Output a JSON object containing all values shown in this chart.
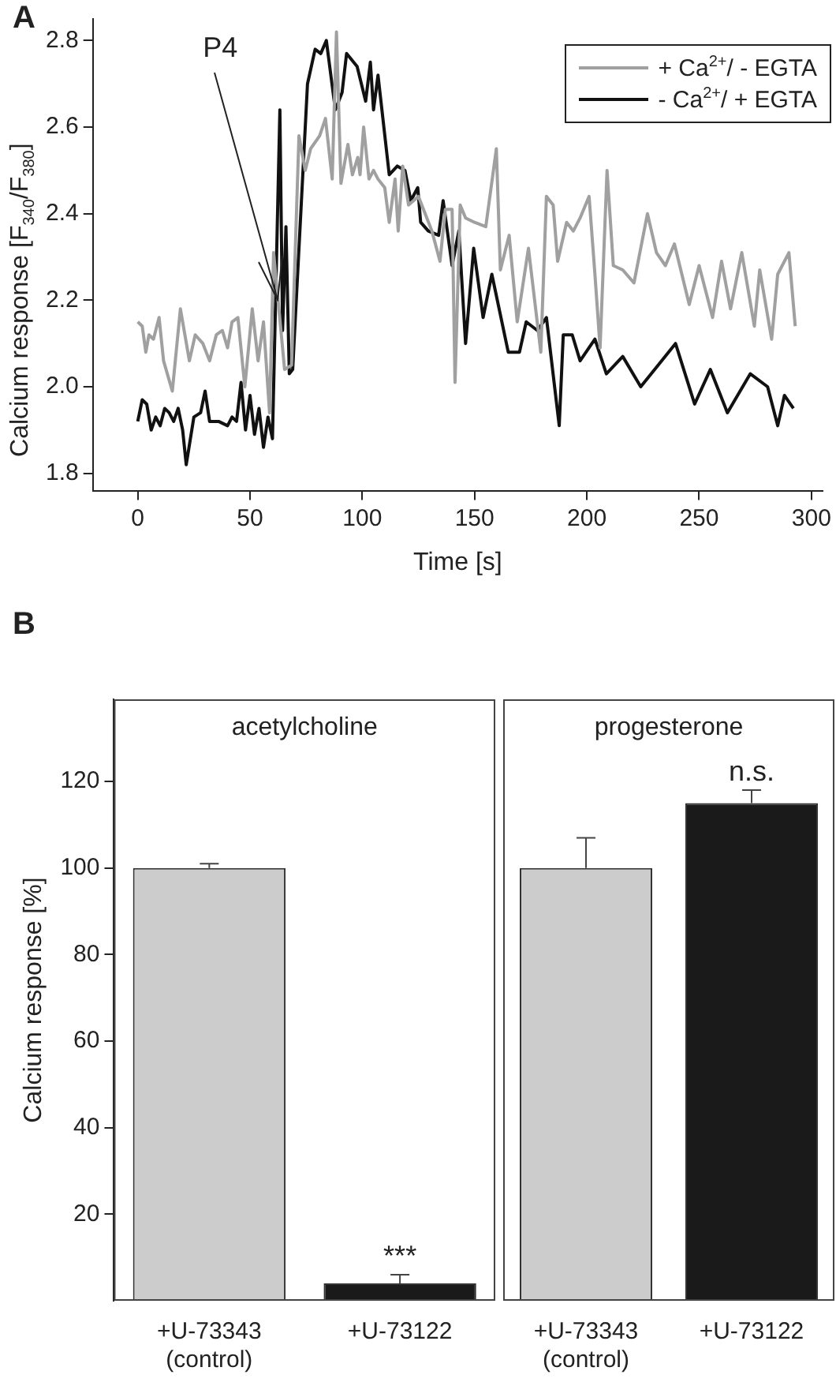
{
  "chart_data": [
    {
      "type": "line",
      "xlabel": "Time [s]",
      "ylabel": "Calcium response [F$_{340}$/F$_{380}$]",
      "xlim": [
        -20,
        305
      ],
      "ylim": [
        1.76,
        2.85
      ],
      "xticks": [
        0,
        50,
        100,
        150,
        200,
        250,
        300
      ],
      "yticks": [
        1.8,
        {
          "value": 2,
          "label": "2.0"
        },
        2.2,
        2.4,
        2.6,
        2.8
      ],
      "grid": false,
      "legend": "top right",
      "marker": "none",
      "line_style": "solid",
      "annotations": [
        "A",
        {
          "text": "P4",
          "x": 62,
          "y": 2.2
        }
      ],
      "series": [
        {
          "name": "+ Ca$^{2+}$/ - EGTA",
          "color": "#a0a0a0",
          "x": [
            0,
            2,
            3.6,
            5,
            7,
            9.5,
            11.5,
            15.4,
            19,
            23,
            25.6,
            29,
            32,
            35,
            37.7,
            40,
            42,
            44.6,
            47.7,
            51,
            53.6,
            56,
            58.7,
            60.5,
            65.4,
            68.5,
            71.8,
            74.6,
            77,
            81,
            83.6,
            86.6,
            88.5,
            90.5,
            93.6,
            95.6,
            98,
            99,
            100.6,
            103,
            105,
            107,
            110,
            112,
            114.6,
            116,
            118,
            120.6,
            125,
            128,
            131,
            134.6,
            137,
            140,
            141.3,
            143.6,
            146,
            150,
            155,
            159.7,
            161.5,
            165.4,
            169,
            174,
            179.5,
            182,
            185,
            187,
            191,
            194,
            197,
            201,
            203.6,
            205.9,
            209,
            211.8,
            216,
            221,
            227,
            231,
            235,
            239,
            245.6,
            250,
            256,
            260,
            264,
            269,
            274.6,
            277,
            282.3,
            285,
            290,
            292.8
          ],
          "values": [
            2.15,
            2.14,
            2.08,
            2.12,
            2.11,
            2.16,
            2.06,
            1.99,
            2.18,
            2.06,
            2.12,
            2.1,
            2.06,
            2.12,
            2.13,
            2.09,
            2.15,
            2.16,
            2.0,
            2.18,
            2.06,
            2.15,
            1.94,
            2.31,
            2.04,
            2.05,
            2.58,
            2.5,
            2.55,
            2.58,
            2.62,
            2.48,
            2.82,
            2.47,
            2.56,
            2.49,
            2.53,
            2.49,
            2.6,
            2.48,
            2.5,
            2.48,
            2.46,
            2.38,
            2.48,
            2.36,
            2.51,
            2.42,
            2.44,
            2.4,
            2.36,
            2.29,
            2.41,
            2.41,
            2.01,
            2.42,
            2.39,
            2.38,
            2.37,
            2.55,
            2.27,
            2.35,
            2.15,
            2.32,
            2.08,
            2.44,
            2.42,
            2.29,
            2.38,
            2.36,
            2.39,
            2.44,
            2.26,
            2.09,
            2.5,
            2.28,
            2.27,
            2.24,
            2.4,
            2.31,
            2.28,
            2.33,
            2.19,
            2.28,
            2.16,
            2.29,
            2.18,
            2.31,
            2.14,
            2.27,
            2.11,
            2.26,
            2.31,
            2.14
          ]
        },
        {
          "name": "- Ca$^{2+}$/ + EGTA",
          "color": "#111111",
          "x": [
            0,
            2,
            4,
            6,
            8,
            10,
            12,
            14,
            16,
            18,
            20,
            21.6,
            25,
            28,
            30,
            32,
            36,
            40,
            42,
            44,
            46,
            48,
            50,
            52,
            54,
            56,
            58,
            60,
            63.3,
            64.5,
            66,
            67.5,
            69,
            75.6,
            79,
            81.5,
            84,
            88,
            91,
            93,
            97.7,
            101.5,
            103.6,
            105,
            107,
            112,
            115.6,
            119,
            121.6,
            124.7,
            126,
            129.4,
            134,
            136,
            140,
            143,
            146,
            149.6,
            153.8,
            157.7,
            165,
            170,
            173,
            178,
            182,
            187.7,
            189.5,
            193.5,
            197,
            203.6,
            208.7,
            216,
            224,
            231.8,
            239.5,
            248,
            255,
            262.6,
            272.8,
            280.5,
            285,
            288,
            292
          ],
          "values": [
            1.92,
            1.97,
            1.96,
            1.9,
            1.93,
            1.91,
            1.95,
            1.94,
            1.92,
            1.95,
            1.9,
            1.82,
            1.93,
            1.94,
            1.99,
            1.92,
            1.92,
            1.91,
            1.93,
            1.92,
            2.01,
            1.9,
            1.98,
            1.89,
            1.95,
            1.86,
            1.93,
            1.88,
            2.64,
            2.13,
            2.37,
            2.03,
            2.04,
            2.7,
            2.78,
            2.77,
            2.8,
            2.64,
            2.68,
            2.77,
            2.74,
            2.66,
            2.75,
            2.64,
            2.72,
            2.49,
            2.51,
            2.5,
            2.43,
            2.46,
            2.38,
            2.36,
            2.35,
            2.43,
            2.28,
            2.36,
            2.1,
            2.32,
            2.16,
            2.26,
            2.08,
            2.08,
            2.15,
            2.13,
            2.16,
            1.91,
            2.12,
            2.12,
            2.06,
            2.11,
            2.03,
            2.07,
            2.0,
            2.05,
            2.1,
            1.96,
            2.04,
            1.94,
            2.03,
            2.0,
            1.91,
            1.98,
            1.95
          ]
        }
      ]
    },
    {
      "type": "bar",
      "title": "acetylcholine",
      "ylabel": "Calcium response [%]",
      "categories": [
        "+U-73343\n(control)",
        "+U-73122"
      ],
      "values": [
        100,
        4
      ],
      "errors": [
        1,
        2
      ],
      "colors": [
        "#cccccc",
        "#1a1a1a"
      ],
      "ylim": [
        0,
        139
      ],
      "yticks": [
        20,
        40,
        60,
        80,
        100,
        120
      ],
      "grid": false,
      "annotations": [
        "B",
        {
          "text": "***",
          "x": "+U-73122",
          "y": 6
        }
      ]
    },
    {
      "type": "bar",
      "title": "progesterone",
      "categories": [
        "+U-73343\n(control)",
        "+U-73122"
      ],
      "values": [
        100,
        115
      ],
      "errors": [
        7,
        3
      ],
      "colors": [
        "#cccccc",
        "#1a1a1a"
      ],
      "ylim": [
        0,
        139
      ],
      "yticks": [
        20,
        40,
        60,
        80,
        100,
        120
      ],
      "grid": false,
      "tick_labels": "x",
      "annotations": [
        {
          "text": "n.s.",
          "x": "+U-73122",
          "y": 118
        }
      ]
    }
  ]
}
